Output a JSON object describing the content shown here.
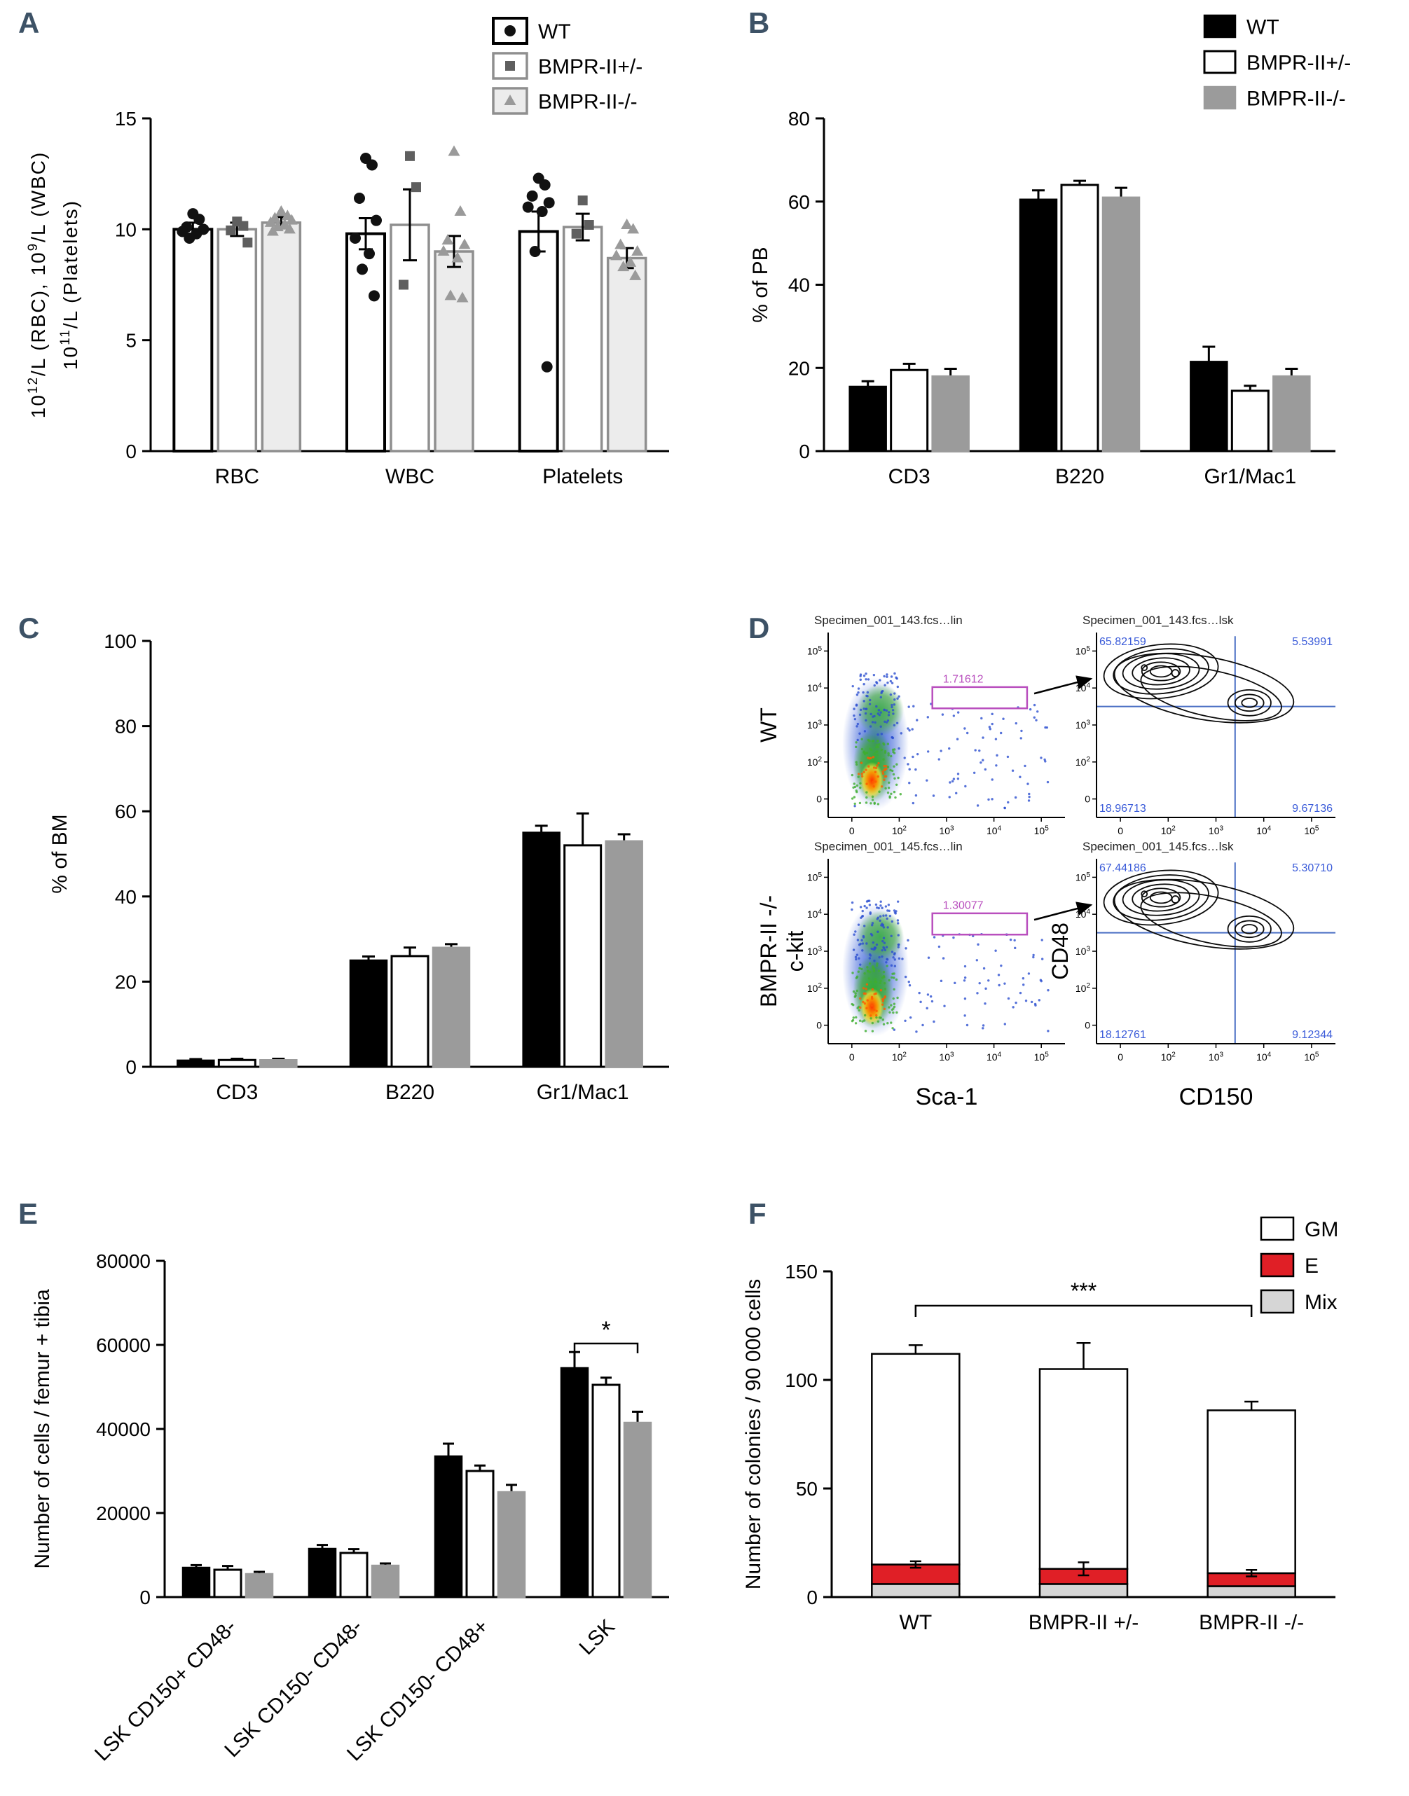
{
  "figure": {
    "background": "#ffffff",
    "panel_letter_color": "#3d5266"
  },
  "panels": {
    "A": {
      "letter": "A"
    },
    "B": {
      "letter": "B"
    },
    "C": {
      "letter": "C"
    },
    "D": {
      "letter": "D"
    },
    "E": {
      "letter": "E"
    },
    "F": {
      "letter": "F"
    }
  },
  "chart_data": [
    {
      "id": "A",
      "type": "bar",
      "variant": "grouped_scatter",
      "ylabel": [
        "10^12/L (RBC), 10^9/L (WBC)",
        "10^11/L (Platelets)"
      ],
      "ylim": [
        0,
        15
      ],
      "yticks": [
        0,
        5,
        10,
        15
      ],
      "categories": [
        "RBC",
        "WBC",
        "Platelets"
      ],
      "series": [
        {
          "name": "WT",
          "fill": "#ffffff",
          "stroke": "#000000",
          "stroke_width": 4,
          "marker": "circle",
          "marker_color": "#111111",
          "values": [
            10.0,
            9.8,
            9.9
          ],
          "errors": [
            0.3,
            0.7,
            0.9
          ],
          "points": [
            [
              10.7,
              10.45,
              10.1,
              10.0,
              9.9,
              9.8,
              9.6
            ],
            [
              13.2,
              12.9,
              11.4,
              10.4,
              9.6,
              8.9,
              8.2,
              7.0
            ],
            [
              12.3,
              12.0,
              11.5,
              11.2,
              11.0,
              10.8,
              9.0,
              3.8
            ]
          ]
        },
        {
          "name": "BMPR-II+/-",
          "fill": "#ffffff",
          "stroke": "#8f8f8f",
          "stroke_width": 3.5,
          "marker": "square",
          "marker_color": "#5f5f5f",
          "values": [
            10.0,
            10.2,
            10.1
          ],
          "errors": [
            0.3,
            1.6,
            0.6
          ],
          "points": [
            [
              10.35,
              10.15,
              9.95,
              9.4
            ],
            [
              13.3,
              11.9,
              7.5
            ],
            [
              11.3,
              10.2,
              9.8
            ]
          ]
        },
        {
          "name": "BMPR-II-/-",
          "fill": "#ececec",
          "stroke": "#8f8f8f",
          "stroke_width": 3.5,
          "marker": "triangle",
          "marker_color": "#9a9a9a",
          "values": [
            10.3,
            9.0,
            8.7
          ],
          "errors": [
            0.25,
            0.7,
            0.45
          ],
          "points": [
            [
              10.8,
              10.6,
              10.5,
              10.4,
              10.3,
              10.2,
              10.1,
              10.0,
              9.9
            ],
            [
              13.5,
              10.8,
              9.5,
              9.3,
              9.0,
              8.7,
              7.0,
              6.9
            ],
            [
              10.2,
              10.0,
              9.3,
              9.0,
              8.8,
              8.5,
              8.3,
              7.9
            ]
          ]
        }
      ],
      "legend": [
        {
          "label": "WT",
          "marker": "circle"
        },
        {
          "label": "BMPR-II+/-",
          "marker": "square"
        },
        {
          "label": "BMPR-II-/-",
          "marker": "triangle"
        }
      ]
    },
    {
      "id": "B",
      "type": "bar",
      "variant": "grouped",
      "ylabel": "% of PB",
      "ylim": [
        0,
        80
      ],
      "yticks": [
        0,
        20,
        40,
        60,
        80
      ],
      "categories": [
        "CD3",
        "B220",
        "Gr1/Mac1"
      ],
      "series": [
        {
          "name": "WT",
          "fill": "#000000",
          "stroke": "#000000",
          "stroke_width": 2.5,
          "values": [
            15.5,
            60.5,
            21.5
          ],
          "errors": [
            1.3,
            2.2,
            3.6
          ]
        },
        {
          "name": "BMPR-II+/-",
          "fill": "#ffffff",
          "stroke": "#000000",
          "stroke_width": 3,
          "values": [
            19.5,
            64.0,
            14.5
          ],
          "errors": [
            1.5,
            1.0,
            1.2
          ]
        },
        {
          "name": "BMPR-II-/-",
          "fill": "#9b9b9b",
          "stroke": "#9b9b9b",
          "stroke_width": 2.5,
          "values": [
            18.0,
            61.0,
            18.0
          ],
          "errors": [
            1.8,
            2.3,
            1.8
          ]
        }
      ],
      "legend": [
        {
          "label": "WT"
        },
        {
          "label": "BMPR-II+/-"
        },
        {
          "label": "BMPR-II-/-"
        }
      ]
    },
    {
      "id": "C",
      "type": "bar",
      "variant": "grouped",
      "ylabel": "% of BM",
      "ylim": [
        0,
        100
      ],
      "yticks": [
        0,
        20,
        40,
        60,
        80,
        100
      ],
      "categories": [
        "CD3",
        "B220",
        "Gr1/Mac1"
      ],
      "series": [
        {
          "name": "WT",
          "fill": "#000000",
          "stroke": "#000000",
          "stroke_width": 2.5,
          "values": [
            1.5,
            25.0,
            55.0
          ],
          "errors": [
            0.3,
            0.9,
            1.6
          ]
        },
        {
          "name": "BMPR-II+/-",
          "fill": "#ffffff",
          "stroke": "#000000",
          "stroke_width": 3,
          "values": [
            1.6,
            26.0,
            52.0
          ],
          "errors": [
            0.3,
            2.0,
            7.5
          ]
        },
        {
          "name": "BMPR-II-/-",
          "fill": "#9b9b9b",
          "stroke": "#9b9b9b",
          "stroke_width": 2.5,
          "values": [
            1.6,
            28.0,
            53.0
          ],
          "errors": [
            0.3,
            0.8,
            1.6
          ]
        }
      ]
    },
    {
      "id": "D",
      "type": "flow_cytometry",
      "rows": [
        {
          "row_label": "WT",
          "dot_plot": {
            "title": "Specimen_001_143.fcs…lin",
            "gate_label": "1.71612"
          },
          "contour_plot": {
            "title": "Specimen_001_143.fcs…lsk",
            "quadrants": {
              "top_left": "65.82159",
              "top_right": "5.53991",
              "bottom_left": "18.96713",
              "bottom_right": "9.67136"
            }
          }
        },
        {
          "row_label": "BMPR-II -/-",
          "dot_plot": {
            "title": "Specimen_001_145.fcs…lin",
            "gate_label": "1.30077"
          },
          "contour_plot": {
            "title": "Specimen_001_145.fcs…lsk",
            "quadrants": {
              "top_left": "67.44186",
              "top_right": "5.30710",
              "bottom_left": "18.12761",
              "bottom_right": "9.12344"
            }
          }
        }
      ],
      "axes": {
        "dot_x": "Sca-1",
        "dot_y": "c-kit",
        "contour_x": "CD150",
        "contour_y": "CD48"
      },
      "tick_labels": [
        "0",
        "10^2",
        "10^3",
        "10^4",
        "10^5"
      ],
      "colors": {
        "gate": "#b94fbe",
        "crosshair": "#4a6fc4",
        "quadrant_text": "#3a5bd9"
      }
    },
    {
      "id": "E",
      "type": "bar",
      "variant": "grouped",
      "ylabel": "Number of cells / femur + tibia",
      "ylim": [
        0,
        80000
      ],
      "yticks": [
        0,
        20000,
        40000,
        60000,
        80000
      ],
      "categories": [
        "LSK CD150+ CD48-",
        "LSK CD150- CD48-",
        "LSK CD150- CD48+",
        "LSK"
      ],
      "rotate_labels": 45,
      "series": [
        {
          "name": "WT",
          "fill": "#000000",
          "stroke": "#000000",
          "stroke_width": 2.5,
          "values": [
            7000,
            11500,
            33500,
            54500
          ],
          "errors": [
            600,
            900,
            3000,
            3800
          ]
        },
        {
          "name": "BMPR-II+/-",
          "fill": "#ffffff",
          "stroke": "#000000",
          "stroke_width": 3,
          "values": [
            6500,
            10500,
            30000,
            50500
          ],
          "errors": [
            900,
            900,
            1300,
            1700
          ]
        },
        {
          "name": "BMPR-II-/-",
          "fill": "#9b9b9b",
          "stroke": "#9b9b9b",
          "stroke_width": 2.5,
          "values": [
            5500,
            7500,
            25000,
            41500
          ],
          "errors": [
            500,
            500,
            1700,
            2600
          ]
        }
      ],
      "significance": {
        "label": "*",
        "category": "LSK",
        "between": [
          "WT",
          "BMPR-II-/-"
        ]
      }
    },
    {
      "id": "F",
      "type": "stacked_bar",
      "ylabel": "Number of colonies / 90 000 cells",
      "ylim": [
        0,
        150
      ],
      "yticks": [
        0,
        50,
        100,
        150
      ],
      "categories": [
        "WT",
        "BMPR-II +/-",
        "BMPR-II -/-"
      ],
      "segments": [
        {
          "name": "Mix",
          "color": "#d6d6d6"
        },
        {
          "name": "E",
          "color": "#e01f26"
        },
        {
          "name": "GM",
          "color": "#ffffff"
        }
      ],
      "values": [
        [
          6,
          9,
          97
        ],
        [
          6,
          7,
          92
        ],
        [
          5,
          6,
          75
        ]
      ],
      "segment_errors": [
        1.5,
        3,
        1.5
      ],
      "total_errors": [
        4,
        12,
        4
      ],
      "legend": [
        {
          "label": "GM",
          "color": "#ffffff"
        },
        {
          "label": "E",
          "color": "#e01f26"
        },
        {
          "label": "Mix",
          "color": "#d6d6d6"
        }
      ],
      "significance": {
        "label": "***",
        "between": [
          "WT",
          "BMPR-II -/-"
        ]
      }
    }
  ]
}
